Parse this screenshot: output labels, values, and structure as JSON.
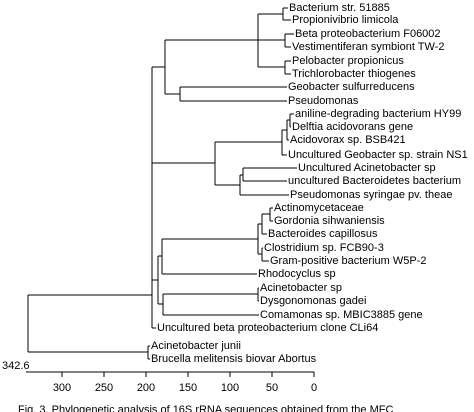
{
  "leaves": [
    "Bacterium str. 51885",
    "Propionivibrio limicola",
    "Beta proteobacterium F06002",
    "Vestimentiferan symbiont TW-2",
    "Pelobacter propionicus",
    "Trichlorobacter thiogenes",
    "Geobacter sulfurreducens",
    "Pseudomonas",
    "aniline-degrading bacterium HY99",
    "Delftia acidovorans gene",
    "Acidovorax sp. BSB421",
    "Uncultured Geobacter sp. strain NS1",
    "Uncultured Acinetobacter sp",
    "uncultured Bacteroidetes bacterium",
    "Pseudomonas syringae pv. theae",
    "Actinomycetaceae",
    "Gordonia sihwaniensis",
    "Bacteroides capillosus",
    "Clostridium sp. FCB90-3",
    "Gram-positive bacterium W5P-2",
    "Rhodocyclus sp",
    "Acinetobacter sp",
    "Dysgonomonas gadei",
    "Comamonas sp. MBIC3885 gene",
    "Uncultured beta proteobacterium clone CLi64",
    "Acinetobacter junii",
    "Brucella melitensis biovar Abortus"
  ],
  "scale_label": "342.6",
  "axis": {
    "ticks": [
      300,
      250,
      200,
      150,
      100,
      50,
      0
    ]
  },
  "caption": "Fig. 3. Phylogenetic analysis of 16S rRNA sequences obtained from the MFC"
}
